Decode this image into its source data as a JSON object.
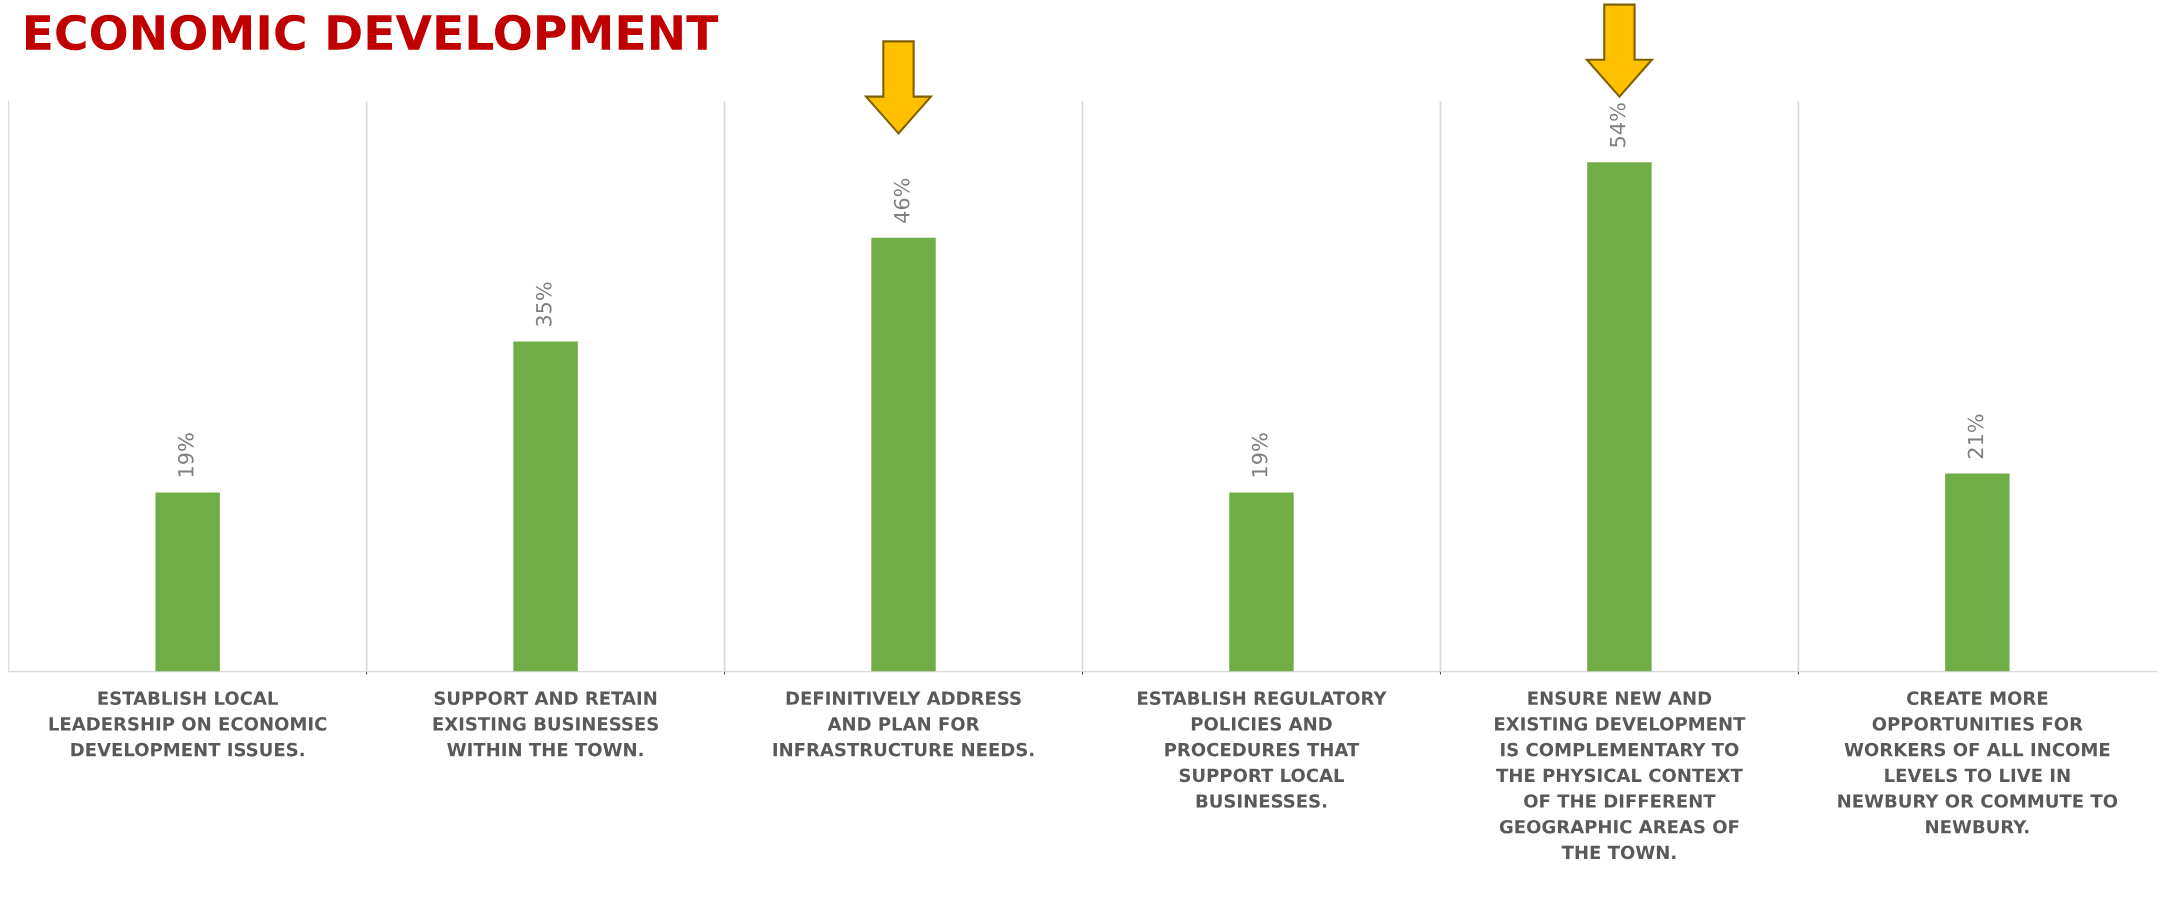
{
  "chart_data": {
    "type": "bar",
    "title": "ECONOMIC DEVELOPMENT",
    "categories": [
      "ESTABLISH LOCAL LEADERSHIP ON ECONOMIC DEVELOPMENT ISSUES.",
      "SUPPORT AND RETAIN EXISTING BUSINESSES WITHIN THE TOWN.",
      "DEFINITIVELY ADDRESS AND PLAN FOR INFRASTRUCTURE NEEDS.",
      "ESTABLISH REGULATORY POLICIES AND PROCEDURES THAT SUPPORT LOCAL BUSINESSES.",
      "ENSURE NEW AND EXISTING DEVELOPMENT IS COMPLEMENTARY TO THE PHYSICAL CONTEXT OF THE DIFFERENT GEOGRAPHIC AREAS OF THE TOWN.",
      "CREATE MORE OPPORTUNITIES FOR WORKERS OF ALL INCOME LEVELS TO LIVE IN NEWBURY OR COMMUTE TO NEWBURY."
    ],
    "values": [
      19,
      35,
      46,
      19,
      54,
      21
    ],
    "value_labels": [
      "19%",
      "35%",
      "46%",
      "19%",
      "54%",
      "21%"
    ],
    "color": "#70ad47",
    "grid": "x"
  }
}
